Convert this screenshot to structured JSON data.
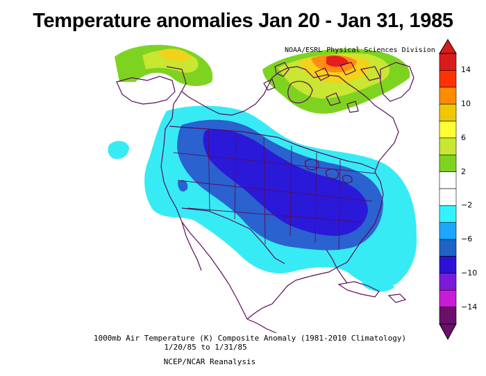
{
  "title": "Temperature anomalies Jan 20 - Jan 31, 1985",
  "credit": "NOAA/ESRL Physical Sciences Division",
  "caption": {
    "line1": "1000mb Air Temperature (K) Composite Anomaly (1981-2010 Climatology)",
    "line2": "1/20/85  to 1/31/85",
    "line3": "NCEP/NCAR Reanalysis"
  },
  "colorbar": {
    "tick_labels": [
      "14",
      "10",
      "6",
      "2",
      "−2",
      "−6",
      "−10",
      "−14"
    ],
    "colors": [
      "#d81c1c",
      "#ff3300",
      "#ff8c00",
      "#f0c800",
      "#ffff33",
      "#c8e632",
      "#7ed321",
      "#ffffff",
      "#ffffff",
      "#33f2ff",
      "#1ca7ff",
      "#1f62c8",
      "#2d12d6",
      "#7a1adc",
      "#c81cd8",
      "#6b0f6b"
    ]
  },
  "colors": {
    "anomaly_-2": "#37ebf5",
    "anomaly_-6": "#2a62cf",
    "anomaly_-8": "#2a19d8",
    "anomaly_+6": "#f2d21a",
    "anomaly_+10": "#ff8c14",
    "anomaly_+14": "#e61e1e",
    "coast": "#5a0a5a"
  }
}
